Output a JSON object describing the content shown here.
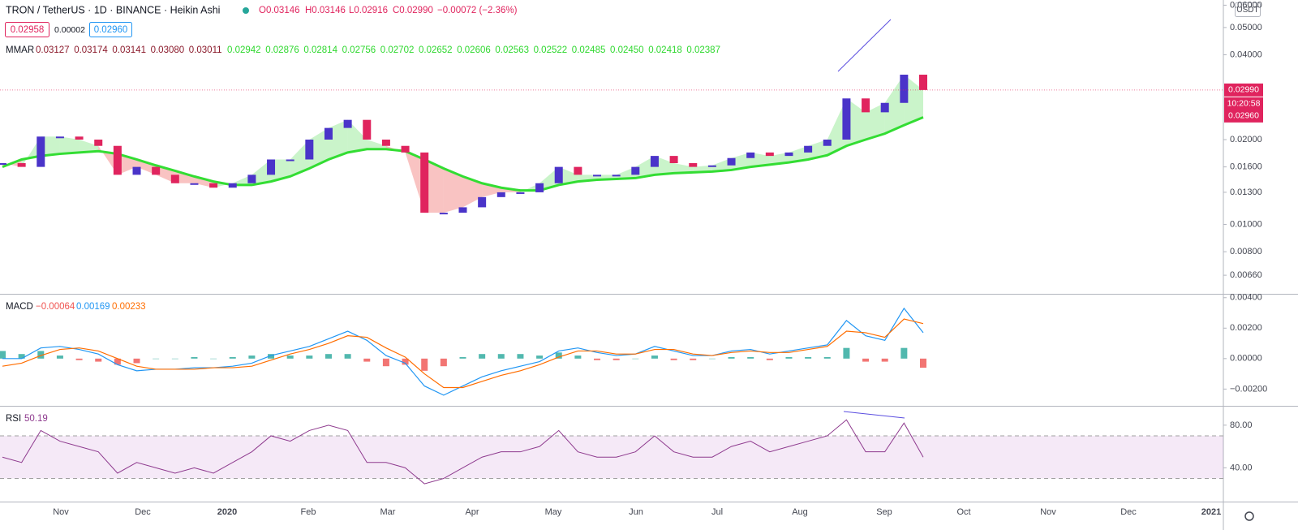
{
  "header": {
    "symbol": "TRON / TetherUS · 1D · BINANCE · Heikin Ashi",
    "ohlc": [
      "O0.03146",
      "H0.03146",
      "L0.02916",
      "C0.02990",
      "−0.00072 (−2.36%)"
    ],
    "sell": "0.02958",
    "spread": "0.00002",
    "buy": "0.02960",
    "currency": "USDT"
  },
  "time_axis": [
    "Nov",
    "Dec",
    "2020",
    "Feb",
    "Mar",
    "Apr",
    "May",
    "Jun",
    "Jul",
    "Aug",
    "Sep",
    "Oct",
    "Nov",
    "Dec",
    "2021"
  ],
  "chart_data": [
    {
      "type": "candlestick",
      "log_scale": true,
      "ylim": [
        0.00567,
        0.0626
      ],
      "yticks": [
        {
          "value": 0.0066,
          "label": "0.00660"
        },
        {
          "value": 0.008,
          "label": "0.00800"
        },
        {
          "value": 0.01,
          "label": "0.01000"
        },
        {
          "value": 0.013,
          "label": "0.01300"
        },
        {
          "value": 0.016,
          "label": "0.01600"
        },
        {
          "value": 0.02,
          "label": "0.02000"
        },
        {
          "value": 0.04,
          "label": "0.04000"
        },
        {
          "value": 0.05,
          "label": "0.05000"
        },
        {
          "value": 0.06,
          "label": "0.06000"
        }
      ],
      "up_color": "#4a34c9",
      "down_color": "#e0245e",
      "values": [
        0.0165,
        0.016,
        0.0205,
        0.0205,
        0.02,
        0.019,
        0.015,
        0.016,
        0.015,
        0.014,
        0.014,
        0.0135,
        0.014,
        0.015,
        0.017,
        0.017,
        0.02,
        0.022,
        0.0235,
        0.02,
        0.019,
        0.018,
        0.011,
        0.011,
        0.0115,
        0.0125,
        0.013,
        0.013,
        0.014,
        0.016,
        0.015,
        0.015,
        0.015,
        0.016,
        0.0175,
        0.0165,
        0.016,
        0.0162,
        0.0172,
        0.018,
        0.0175,
        0.018,
        0.019,
        0.02,
        0.028,
        0.025,
        0.027,
        0.034,
        0.03
      ],
      "mmar_slow": [
        0.016,
        0.017,
        0.0175,
        0.0178,
        0.018,
        0.0182,
        0.0178,
        0.017,
        0.0162,
        0.0155,
        0.0148,
        0.0142,
        0.0138,
        0.0138,
        0.0142,
        0.0148,
        0.0158,
        0.017,
        0.018,
        0.0185,
        0.0185,
        0.0182,
        0.017,
        0.0158,
        0.0148,
        0.014,
        0.0135,
        0.0132,
        0.0132,
        0.0138,
        0.0142,
        0.0144,
        0.0145,
        0.0146,
        0.015,
        0.0152,
        0.0153,
        0.0154,
        0.0156,
        0.016,
        0.0163,
        0.0166,
        0.017,
        0.0176,
        0.019,
        0.02,
        0.021,
        0.0225,
        0.024
      ],
      "legend_label": "MMAR",
      "legend_values_down": [
        "0.03127",
        "0.03174",
        "0.03141",
        "0.03080",
        "0.03011"
      ],
      "legend_values_up": [
        "0.02942",
        "0.02876",
        "0.02814",
        "0.02756",
        "0.02702",
        "0.02652",
        "0.02606",
        "0.02563",
        "0.02522",
        "0.02485",
        "0.02450",
        "0.02418",
        "0.02387"
      ],
      "last_price_tags": [
        "0.02990",
        "10:20:58",
        "0.02960"
      ]
    },
    {
      "type": "macd",
      "legend_label": "MACD",
      "legend_values": [
        "−0.00064",
        "0.00169",
        "0.00233"
      ],
      "ylim": [
        -0.0031,
        0.0042
      ],
      "yticks": [
        {
          "value": 0.004,
          "label": "0.00400"
        },
        {
          "value": 0.002,
          "label": "0.00200"
        },
        {
          "value": 0,
          "label": "0.00000"
        },
        {
          "value": -0.002,
          "label": "−0.00200"
        }
      ],
      "histogram_colors": [
        "#26a69a",
        "#ef5350"
      ],
      "histogram": [
        0.0005,
        0.0003,
        0.0005,
        0.0002,
        -0.0001,
        -0.0002,
        -0.0004,
        -0.0003,
        0,
        0,
        0.0001,
        0,
        0.0001,
        0.0002,
        0.0003,
        0.0002,
        0.0002,
        0.0003,
        0.0003,
        -0.0002,
        -0.0005,
        -0.0004,
        -0.0008,
        -0.0005,
        0.0001,
        0.0003,
        0.0003,
        0.0003,
        0.0002,
        0.0004,
        0.0002,
        -0.0001,
        -0.0001,
        0,
        0.0002,
        -0.0001,
        -0.0001,
        0,
        0.0001,
        0.0001,
        -0.0001,
        0.0001,
        0.0001,
        0.0001,
        0.0007,
        -0.0002,
        -0.0002,
        0.0007,
        -0.0006
      ],
      "series": [
        {
          "color": "#2196f3",
          "values": [
            0,
            0,
            0.0007,
            0.0008,
            0.0006,
            0.0003,
            -0.0004,
            -0.0008,
            -0.0007,
            -0.0007,
            -0.0006,
            -0.0006,
            -0.0005,
            -0.0003,
            0.0002,
            0.0005,
            0.0008,
            0.0013,
            0.0018,
            0.0012,
            0.0002,
            -0.0003,
            -0.0018,
            -0.0024,
            -0.0018,
            -0.0012,
            -0.0008,
            -0.0005,
            -0.0002,
            0.0005,
            0.0007,
            0.0004,
            0.0002,
            0.0003,
            0.0008,
            0.0005,
            0.0002,
            0.0002,
            0.0005,
            0.0006,
            0.0003,
            0.0005,
            0.0007,
            0.0009,
            0.0025,
            0.0015,
            0.0012,
            0.0033,
            0.0017
          ]
        },
        {
          "color": "#ff6d00",
          "values": [
            -0.0005,
            -0.0003,
            0.0002,
            0.0006,
            0.0007,
            0.0005,
            0,
            -0.0005,
            -0.0007,
            -0.0007,
            -0.0007,
            -0.0006,
            -0.0006,
            -0.0005,
            -0.0001,
            0.0003,
            0.0006,
            0.001,
            0.0015,
            0.0014,
            0.0007,
            0.0001,
            -0.001,
            -0.0019,
            -0.0019,
            -0.0015,
            -0.0011,
            -0.0008,
            -0.0004,
            0.0001,
            0.0005,
            0.0005,
            0.0003,
            0.0003,
            0.0006,
            0.0006,
            0.0003,
            0.0002,
            0.0004,
            0.0005,
            0.0004,
            0.0004,
            0.0006,
            0.0008,
            0.0018,
            0.0017,
            0.0014,
            0.0026,
            0.0023
          ]
        }
      ]
    },
    {
      "type": "rsi",
      "legend_label": "RSI",
      "legend_value": "50.19",
      "ylim": [
        8.3,
        97.4
      ],
      "yticks": [
        {
          "value": 80,
          "label": "80.00"
        },
        {
          "value": 40,
          "label": "40.00"
        }
      ],
      "band": [
        30,
        70
      ],
      "color": "#8e3a8e",
      "values": [
        50,
        45,
        75,
        65,
        60,
        55,
        35,
        45,
        40,
        35,
        40,
        35,
        45,
        55,
        70,
        65,
        75,
        80,
        75,
        45,
        45,
        40,
        25,
        30,
        40,
        50,
        55,
        55,
        60,
        75,
        55,
        50,
        50,
        55,
        70,
        55,
        50,
        50,
        60,
        65,
        55,
        60,
        65,
        70,
        85,
        55,
        55,
        82,
        50
      ]
    }
  ]
}
